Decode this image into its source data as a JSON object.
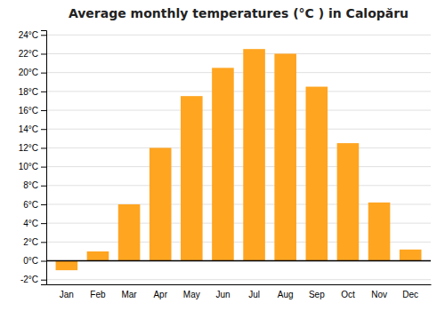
{
  "chart_data": {
    "type": "bar",
    "title": "Average monthly temperatures (°C ) in Calopăru",
    "categories": [
      "Jan",
      "Feb",
      "Mar",
      "Apr",
      "May",
      "Jun",
      "Jul",
      "Aug",
      "Sep",
      "Oct",
      "Nov",
      "Dec"
    ],
    "values": [
      -1.0,
      1.0,
      6.0,
      12.0,
      17.5,
      20.5,
      22.5,
      22.0,
      18.5,
      12.5,
      6.2,
      1.2
    ],
    "color": "#FFA520",
    "ylim": [
      -2.5,
      24.5
    ],
    "yticks": [
      {
        "value": -2,
        "label": "-2°C"
      },
      {
        "value": 0,
        "label": "0°C"
      },
      {
        "value": 2,
        "label": "2°C"
      },
      {
        "value": 4,
        "label": "4°C"
      },
      {
        "value": 6,
        "label": "6°C"
      },
      {
        "value": 8,
        "label": "8°C"
      },
      {
        "value": 10,
        "label": "10°C"
      },
      {
        "value": 12,
        "label": "12°C"
      },
      {
        "value": 14,
        "label": "14°C"
      },
      {
        "value": 16,
        "label": "16°C"
      },
      {
        "value": 18,
        "label": "18°C"
      },
      {
        "value": 20,
        "label": "20°C"
      },
      {
        "value": 22,
        "label": "22°C"
      },
      {
        "value": 24,
        "label": "24°C"
      }
    ],
    "grid": true
  }
}
